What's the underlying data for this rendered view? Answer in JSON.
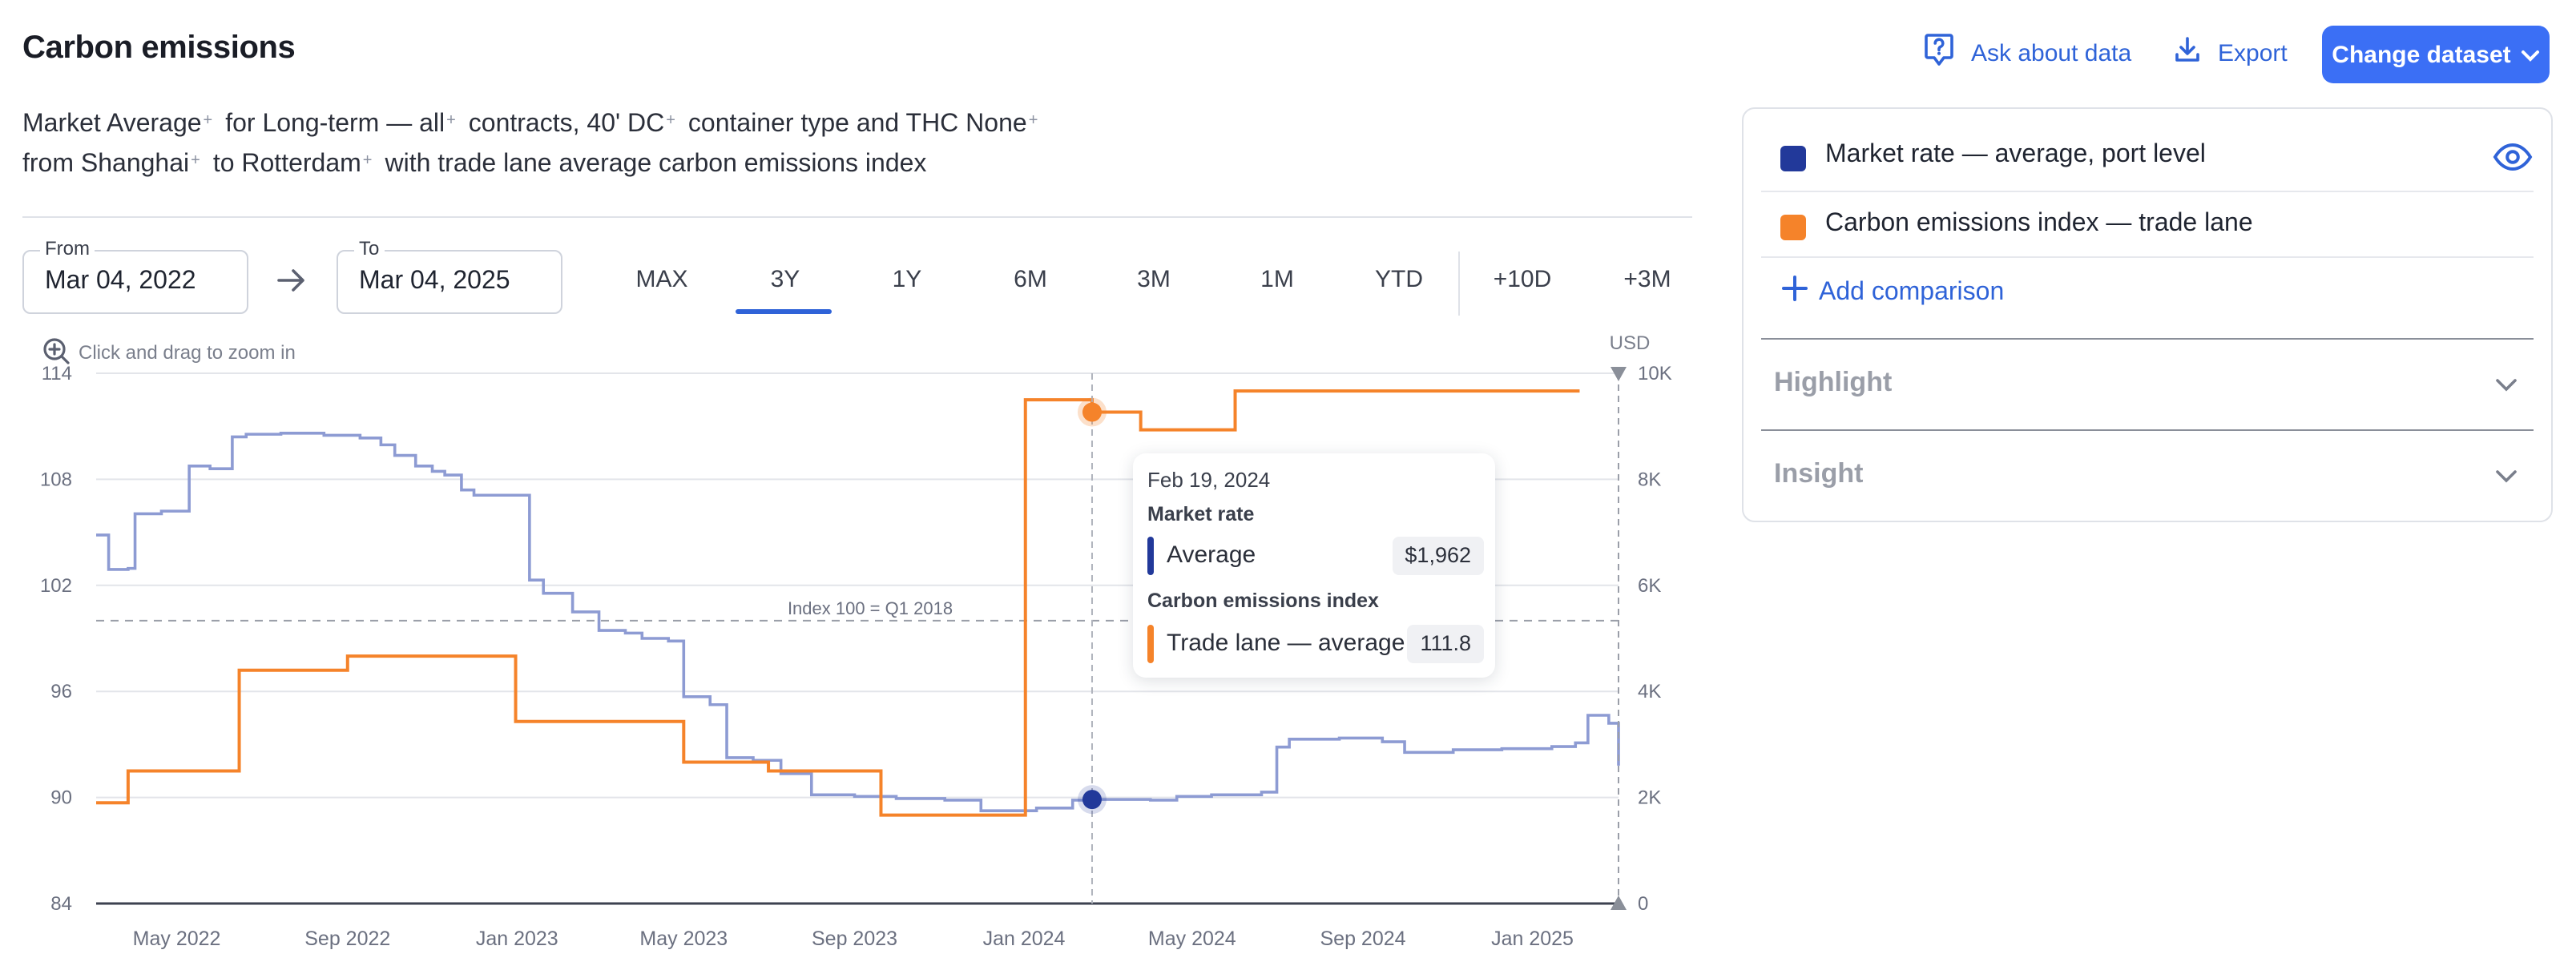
{
  "header": {
    "title": "Carbon emissions",
    "ask_label": "Ask about data",
    "export_label": "Export",
    "dataset_label": "Change dataset"
  },
  "description": {
    "line1": [
      {
        "text": "Market  Average",
        "sup": "+"
      },
      {
        "text": "for  Long-term — all",
        "sup": "+"
      },
      {
        "text": "contracts,  40' DC",
        "sup": "+"
      },
      {
        "text": "container type and THC  None",
        "sup": "+"
      }
    ],
    "line2": [
      {
        "text": "from  Shanghai",
        "sup": "+"
      },
      {
        "text": "to  Rotterdam",
        "sup": "+"
      },
      {
        "text": "with trade lane average carbon emissions index",
        "sup": ""
      }
    ]
  },
  "date_range": {
    "from_label": "From",
    "from_value": "Mar 04, 2022",
    "to_label": "To",
    "to_value": "Mar 04, 2025"
  },
  "ranges": [
    "MAX",
    "3Y",
    "1Y",
    "6M",
    "3M",
    "1M",
    "YTD",
    "+10D",
    "+3M"
  ],
  "active_range": "3Y",
  "chart_hint": "Click and drag to zoom in",
  "tooltip": {
    "date": "Feb 19, 2024",
    "group1": "Market rate",
    "row1_label": "Average",
    "row1_value": "$1,962",
    "group2": "Carbon emissions index",
    "row2_label": "Trade lane — average",
    "row2_value": "111.8"
  },
  "legend": {
    "items": [
      {
        "label": "Market rate — average, port level",
        "color": "#22399a"
      },
      {
        "label": "Carbon emissions index — trade lane",
        "color": "#f5832a"
      }
    ],
    "add_label": "Add comparison"
  },
  "accordions": {
    "highlight": "Highlight",
    "insight": "Insight"
  },
  "colors": {
    "accent": "#2f63d8",
    "button": "#3b6ff5",
    "market_line": "#8d9bd3",
    "market_dot": "#22399a",
    "carbon_line": "#f5832a"
  },
  "chart_data": {
    "type": "line",
    "x_ticks": [
      "May 2022",
      "Sep 2022",
      "Jan 2023",
      "May 2023",
      "Sep 2023",
      "Jan 2024",
      "May 2024",
      "Sep 2024",
      "Jan 2025"
    ],
    "x_range": [
      "2022-03-04",
      "2025-03-04"
    ],
    "y_left": {
      "ticks": [
        84,
        90,
        96,
        102,
        108,
        114
      ],
      "range": [
        84,
        114
      ]
    },
    "y_right": {
      "unit": "USD",
      "ticks": [
        "0",
        "2K",
        "4K",
        "6K",
        "8K",
        "10K"
      ],
      "range": [
        0,
        10000
      ]
    },
    "reference_line": {
      "label": "Index 100 = Q1 2018",
      "value": 100
    },
    "series": [
      {
        "name": "Market rate — average, port level",
        "axis": "right",
        "step": true,
        "points": [
          [
            "2022-03-04",
            6950
          ],
          [
            "2022-03-13",
            6300
          ],
          [
            "2022-03-27",
            6320
          ],
          [
            "2022-04-01",
            7350
          ],
          [
            "2022-04-20",
            7400
          ],
          [
            "2022-05-10",
            8250
          ],
          [
            "2022-05-25",
            8200
          ],
          [
            "2022-06-10",
            8800
          ],
          [
            "2022-06-20",
            8850
          ],
          [
            "2022-07-15",
            8870
          ],
          [
            "2022-08-15",
            8830
          ],
          [
            "2022-09-10",
            8780
          ],
          [
            "2022-09-25",
            8650
          ],
          [
            "2022-10-05",
            8450
          ],
          [
            "2022-10-20",
            8250
          ],
          [
            "2022-11-01",
            8150
          ],
          [
            "2022-11-10",
            8080
          ],
          [
            "2022-11-22",
            7800
          ],
          [
            "2022-12-01",
            7700
          ],
          [
            "2023-01-03",
            7700
          ],
          [
            "2023-01-10",
            6100
          ],
          [
            "2023-01-20",
            5850
          ],
          [
            "2023-02-10",
            5500
          ],
          [
            "2023-03-01",
            5150
          ],
          [
            "2023-03-20",
            5100
          ],
          [
            "2023-04-01",
            5000
          ],
          [
            "2023-04-20",
            4950
          ],
          [
            "2023-05-01",
            3900
          ],
          [
            "2023-05-20",
            3750
          ],
          [
            "2023-06-01",
            2750
          ],
          [
            "2023-06-20",
            2700
          ],
          [
            "2023-07-10",
            2450
          ],
          [
            "2023-08-01",
            2050
          ],
          [
            "2023-09-01",
            2020
          ],
          [
            "2023-10-01",
            1980
          ],
          [
            "2023-11-05",
            1950
          ],
          [
            "2023-12-01",
            1750
          ],
          [
            "2024-01-10",
            1800
          ],
          [
            "2024-02-05",
            1950
          ],
          [
            "2024-02-19",
            1962
          ],
          [
            "2024-04-01",
            1950
          ],
          [
            "2024-04-20",
            2020
          ],
          [
            "2024-05-15",
            2050
          ],
          [
            "2024-06-20",
            2100
          ],
          [
            "2024-07-01",
            2950
          ],
          [
            "2024-07-10",
            3100
          ],
          [
            "2024-08-15",
            3120
          ],
          [
            "2024-09-15",
            3050
          ],
          [
            "2024-10-01",
            2850
          ],
          [
            "2024-11-05",
            2900
          ],
          [
            "2024-12-10",
            2920
          ],
          [
            "2025-01-15",
            2960
          ],
          [
            "2025-02-01",
            3030
          ],
          [
            "2025-02-10",
            3550
          ],
          [
            "2025-02-25",
            3400
          ],
          [
            "2025-03-04",
            2600
          ]
        ]
      },
      {
        "name": "Carbon emissions index — trade lane",
        "axis": "left",
        "step": true,
        "points": [
          [
            "2022-03-04",
            89.7
          ],
          [
            "2022-03-27",
            91.5
          ],
          [
            "2022-06-15",
            97.2
          ],
          [
            "2022-09-01",
            98.0
          ],
          [
            "2022-12-31",
            94.3
          ],
          [
            "2023-05-01",
            92.0
          ],
          [
            "2023-07-01",
            91.5
          ],
          [
            "2023-09-20",
            89.0
          ],
          [
            "2024-01-02",
            112.5
          ],
          [
            "2024-02-19",
            111.8
          ],
          [
            "2024-03-25",
            110.8
          ],
          [
            "2024-06-01",
            113.0
          ],
          [
            "2025-02-04",
            113.0
          ]
        ]
      }
    ]
  }
}
